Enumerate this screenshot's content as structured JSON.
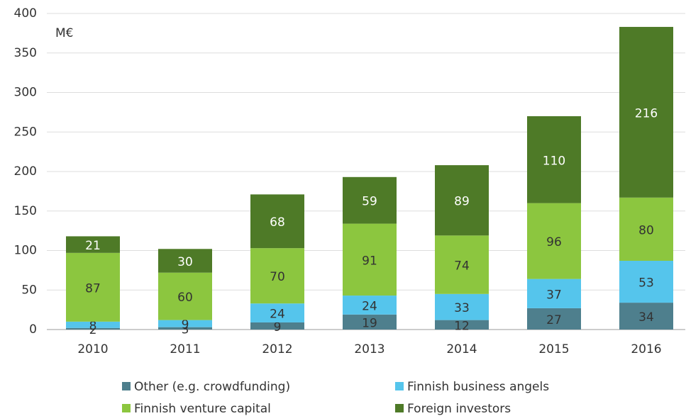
{
  "chart_data": {
    "type": "stacked_bar",
    "unit": "M€",
    "categories": [
      "2010",
      "2011",
      "2012",
      "2013",
      "2014",
      "2015",
      "2016"
    ],
    "series": [
      {
        "name": "Other (e.g. crowdfunding)",
        "color": "#4e7f8d",
        "values": [
          2,
          3,
          9,
          19,
          12,
          27,
          34
        ]
      },
      {
        "name": "Finnish business angels",
        "color": "#55c5ec",
        "values": [
          8,
          9,
          24,
          24,
          33,
          37,
          53
        ]
      },
      {
        "name": "Finnish venture capital",
        "color": "#8cc63f",
        "values": [
          87,
          60,
          70,
          91,
          74,
          96,
          80
        ]
      },
      {
        "name": "Foreign investors",
        "color": "#4e7a27",
        "values": [
          21,
          30,
          68,
          59,
          89,
          110,
          216
        ]
      }
    ],
    "ylim": [
      0,
      400
    ],
    "yticks": [
      0,
      50,
      100,
      150,
      200,
      250,
      300,
      350,
      400
    ],
    "grid": true
  }
}
